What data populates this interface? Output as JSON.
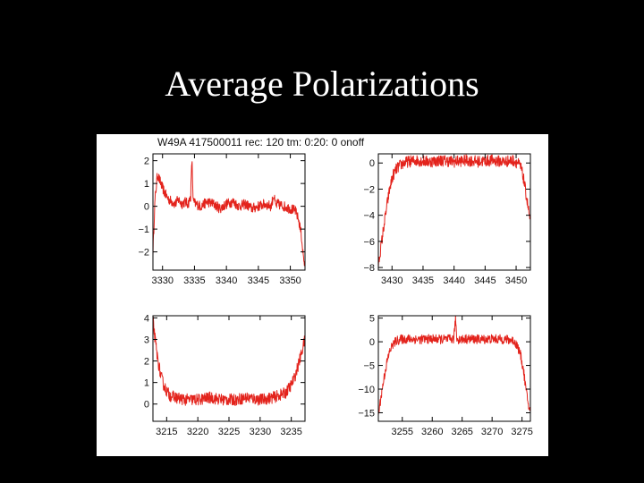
{
  "slide": {
    "title": "Average Polarizations"
  },
  "figure": {
    "header": "W49A 417500011 rec: 120 tm: 0:20: 0 onoff"
  },
  "chart_data": [
    {
      "type": "line",
      "panel": "top-left",
      "xlim": [
        3328.5,
        3352.3
      ],
      "ylim": [
        -2.8,
        2.3
      ],
      "xticks": [
        3330,
        3335,
        3340,
        3345,
        3350
      ],
      "yticks": [
        -2,
        -1,
        0,
        1,
        2
      ],
      "series": [
        {
          "x": [
            3328.5,
            3328.8,
            3329.2,
            3329.6,
            3330.0,
            3330.5,
            3331.0,
            3331.5,
            3332.0,
            3332.5,
            3333.0,
            3333.5,
            3334.0,
            3334.4,
            3334.6,
            3334.8,
            3335.2,
            3336.0,
            3337.0,
            3338.0,
            3339.0,
            3340.0,
            3341.0,
            3342.0,
            3343.0,
            3344.0,
            3345.0,
            3346.0,
            3347.0,
            3347.4,
            3347.7,
            3348.0,
            3349.0,
            3350.0,
            3350.8,
            3351.3,
            3351.7,
            3352.0,
            3352.3
          ],
          "y": [
            -2.0,
            0.2,
            1.4,
            1.1,
            0.8,
            0.5,
            0.3,
            0.2,
            0.1,
            0.3,
            0.1,
            0.2,
            0.1,
            0.4,
            2.1,
            0.2,
            0.1,
            0.0,
            0.2,
            0.1,
            -0.1,
            0.1,
            0.2,
            0.0,
            0.1,
            -0.1,
            0.0,
            0.1,
            0.0,
            0.5,
            0.0,
            0.1,
            0.0,
            -0.1,
            -0.2,
            -0.6,
            -1.2,
            -2.1,
            -2.7
          ],
          "noise": 0.22
        }
      ]
    },
    {
      "type": "line",
      "panel": "top-right",
      "xlim": [
        3427.8,
        3452.3
      ],
      "ylim": [
        -8.2,
        0.7
      ],
      "xticks": [
        3430,
        3435,
        3440,
        3445,
        3450
      ],
      "yticks": [
        -8,
        -6,
        -4,
        -2,
        0
      ],
      "series": [
        {
          "x": [
            3427.8,
            3428.2,
            3428.7,
            3429.2,
            3429.7,
            3430.2,
            3430.8,
            3431.5,
            3432.5,
            3434.0,
            3436.0,
            3438.0,
            3440.0,
            3442.0,
            3444.0,
            3446.0,
            3448.0,
            3449.5,
            3450.3,
            3450.8,
            3451.2,
            3451.6,
            3452.0,
            3452.3
          ],
          "y": [
            -7.8,
            -6.5,
            -4.8,
            -3.2,
            -1.8,
            -0.9,
            -0.4,
            -0.1,
            0.1,
            0.2,
            0.1,
            0.2,
            0.1,
            0.2,
            0.1,
            0.2,
            0.1,
            0.2,
            0.0,
            -0.4,
            -1.2,
            -2.4,
            -3.6,
            -4.6
          ],
          "noise": 0.25
        }
      ]
    },
    {
      "type": "line",
      "panel": "bottom-left",
      "xlim": [
        3212.8,
        3237.2
      ],
      "ylim": [
        -0.8,
        4.1
      ],
      "xticks": [
        3215,
        3220,
        3225,
        3230,
        3235
      ],
      "yticks": [
        0,
        1,
        2,
        3,
        4
      ],
      "series": [
        {
          "x": [
            3212.8,
            3213.1,
            3213.5,
            3214.0,
            3214.5,
            3215.0,
            3215.5,
            3216.5,
            3218.0,
            3220.0,
            3222.0,
            3224.0,
            3226.0,
            3228.0,
            3230.0,
            3232.0,
            3233.0,
            3234.0,
            3234.8,
            3235.5,
            3236.0,
            3236.5,
            3236.9,
            3237.2
          ],
          "y": [
            3.9,
            3.1,
            2.2,
            1.4,
            0.9,
            0.6,
            0.4,
            0.3,
            0.2,
            0.2,
            0.3,
            0.2,
            0.2,
            0.3,
            0.2,
            0.3,
            0.4,
            0.5,
            0.8,
            1.2,
            1.7,
            2.2,
            2.7,
            3.0
          ],
          "noise": 0.28
        }
      ]
    },
    {
      "type": "line",
      "panel": "bottom-right",
      "xlim": [
        3251.0,
        3276.4
      ],
      "ylim": [
        -16.8,
        5.5
      ],
      "xticks": [
        3255,
        3260,
        3265,
        3270,
        3275
      ],
      "yticks": [
        -15,
        -10,
        -5,
        0,
        5
      ],
      "series": [
        {
          "x": [
            3251.0,
            3251.4,
            3251.9,
            3252.4,
            3252.9,
            3253.4,
            3254.0,
            3254.8,
            3256.0,
            3258.0,
            3260.0,
            3262.0,
            3263.6,
            3263.9,
            3264.1,
            3264.4,
            3266.0,
            3268.0,
            3270.0,
            3272.0,
            3273.5,
            3274.2,
            3274.8,
            3275.3,
            3275.7,
            3276.1,
            3276.4
          ],
          "y": [
            -15.5,
            -12.0,
            -8.0,
            -4.5,
            -2.0,
            -0.6,
            0.2,
            0.5,
            0.6,
            0.5,
            0.6,
            0.5,
            0.6,
            5.0,
            0.7,
            0.5,
            0.6,
            0.5,
            0.6,
            0.5,
            0.3,
            -0.8,
            -3.0,
            -6.5,
            -10.5,
            -13.5,
            -15.0
          ],
          "noise": 0.22
        }
      ]
    }
  ]
}
